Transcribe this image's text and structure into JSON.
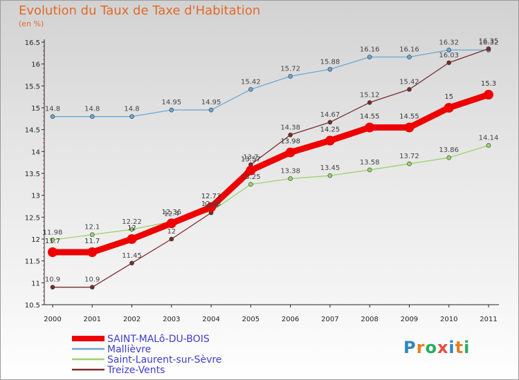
{
  "header": {
    "title": "Evolution du Taux de Taxe d'Habitation",
    "subtitle": "(en %)"
  },
  "chart_data": {
    "type": "line",
    "title": "Evolution du Taux de Taxe d'Habitation",
    "subtitle": "(en %)",
    "x": [
      "2000",
      "2001",
      "2002",
      "2003",
      "2004",
      "2005",
      "2006",
      "2007",
      "2008",
      "2009",
      "2010",
      "2011"
    ],
    "ylim": [
      10.5,
      16.5
    ],
    "yticks": [
      "10.5",
      "11",
      "11.5",
      "12",
      "12.5",
      "13",
      "13.5",
      "14",
      "14.5",
      "15",
      "15.5",
      "16",
      "16.5"
    ],
    "grid": false,
    "legend_position": "bottom-left",
    "series": [
      {
        "name": "Mallièvre",
        "color": "#6aa6d6",
        "values": [
          14.8,
          14.8,
          14.8,
          14.95,
          14.95,
          15.42,
          15.72,
          15.88,
          16.16,
          16.16,
          16.32,
          16.32
        ],
        "labels": [
          "14.8",
          "14.8",
          "14.8",
          "14.95",
          "14.95",
          "15.42",
          "15.72",
          "15.88",
          "16.16",
          "16.16",
          "16.32",
          "16.32"
        ]
      },
      {
        "name": "Saint-Laurent-sur-Sèvre",
        "color": "#99d46a",
        "values": [
          11.98,
          12.1,
          12.22,
          12.4,
          12.63,
          13.25,
          13.38,
          13.45,
          13.58,
          13.72,
          13.86,
          14.14
        ],
        "labels": [
          "11.98",
          "12.1",
          "12.22",
          "12.4",
          "12.63",
          "13.25",
          "13.38",
          "13.45",
          "13.58",
          "13.72",
          "13.86",
          "14.14"
        ]
      },
      {
        "name": "Treize-Vents",
        "color": "#7a2a2a",
        "values": [
          10.9,
          10.9,
          11.45,
          12,
          12.6,
          13.7,
          14.38,
          14.67,
          15.12,
          15.42,
          16.03,
          16.35
        ],
        "labels": [
          "10.9",
          "10.9",
          "11.45",
          "12",
          "12.6",
          "13.7",
          "14.38",
          "14.67",
          "15.12",
          "15.42",
          "16.03",
          "16.35"
        ]
      },
      {
        "name": "SAINT-MALô-DU-BOIS",
        "color": "#ee0000",
        "emphasis": true,
        "values": [
          11.7,
          11.7,
          12,
          12.36,
          12.73,
          13.57,
          13.98,
          14.25,
          14.55,
          14.55,
          15,
          15.3
        ],
        "labels": [
          "11.7",
          "11.7",
          "12",
          "12.36",
          "12.73",
          "13.57",
          "13.98",
          "14.25",
          "14.55",
          "14.55",
          "15",
          "15.3"
        ]
      }
    ],
    "legend": [
      "SAINT-MALô-DU-BOIS",
      "Mallièvre",
      "Saint-Laurent-sur-Sèvre",
      "Treize-Vents"
    ]
  },
  "logo": {
    "letters": [
      {
        "ch": "P",
        "color": "#2e86c1"
      },
      {
        "ch": "r",
        "color": "#e67e22"
      },
      {
        "ch": "o",
        "color": "#27ae60"
      },
      {
        "ch": "x",
        "color": "#e74c3c"
      },
      {
        "ch": "i",
        "color": "#2e86c1"
      },
      {
        "ch": "t",
        "color": "#e67e22"
      },
      {
        "ch": "i",
        "color": "#27ae60"
      }
    ]
  }
}
